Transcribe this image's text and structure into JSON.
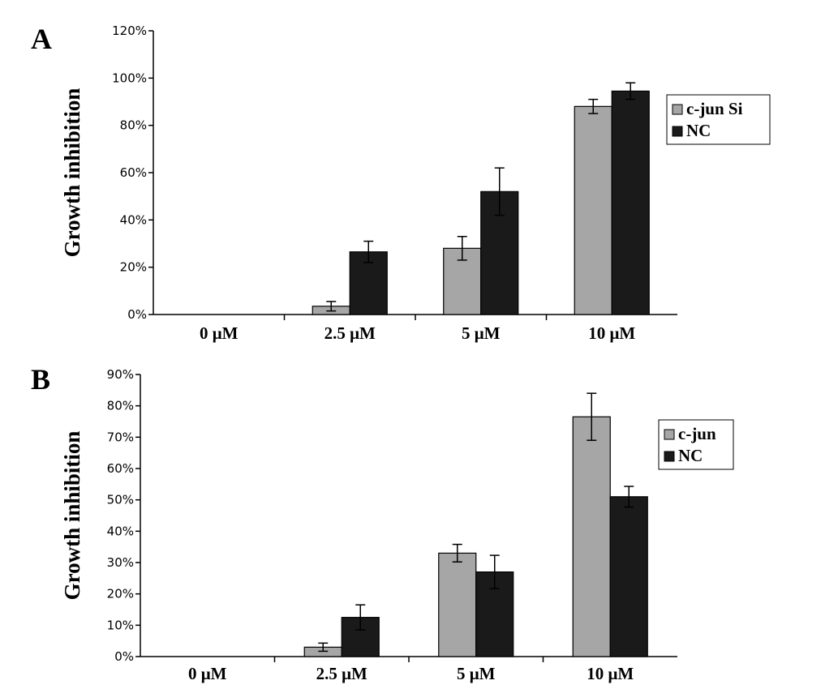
{
  "chart_data": [
    {
      "type": "bar",
      "panel": "A",
      "ylabel": "Growth inhibition",
      "xlabel": "",
      "ylim": [
        0,
        120
      ],
      "yticks": [
        "0%",
        "20%",
        "40%",
        "60%",
        "80%",
        "100%",
        "120%"
      ],
      "categories": [
        "0 μM",
        "2.5 μM",
        "5 μM",
        "10 μM"
      ],
      "series": [
        {
          "name": "c-jun Si",
          "color": "#a6a6a6",
          "values": [
            0,
            3.5,
            28,
            88
          ],
          "errors": [
            0,
            2,
            5,
            3
          ]
        },
        {
          "name": "NC",
          "color": "#1a1a1a",
          "values": [
            0,
            26.5,
            52,
            94.5
          ],
          "errors": [
            0,
            4.5,
            10,
            3.5
          ]
        }
      ],
      "legend": "right"
    },
    {
      "type": "bar",
      "panel": "B",
      "ylabel": "Growth inhibition",
      "xlabel": "",
      "ylim": [
        0,
        90
      ],
      "yticks": [
        "0%",
        "10%",
        "20%",
        "30%",
        "40%",
        "50%",
        "60%",
        "70%",
        "80%",
        "90%"
      ],
      "categories": [
        "0 μM",
        "2.5 μM",
        "5 μM",
        "10 μM"
      ],
      "series": [
        {
          "name": "c-jun",
          "color": "#a6a6a6",
          "values": [
            0,
            3,
            33,
            76.5
          ],
          "errors": [
            0,
            1.3,
            2.8,
            7.5
          ]
        },
        {
          "name": "NC",
          "color": "#1a1a1a",
          "values": [
            0,
            12.5,
            27,
            51
          ],
          "errors": [
            0,
            4,
            5.3,
            3.3
          ]
        }
      ],
      "legend": "right"
    }
  ]
}
